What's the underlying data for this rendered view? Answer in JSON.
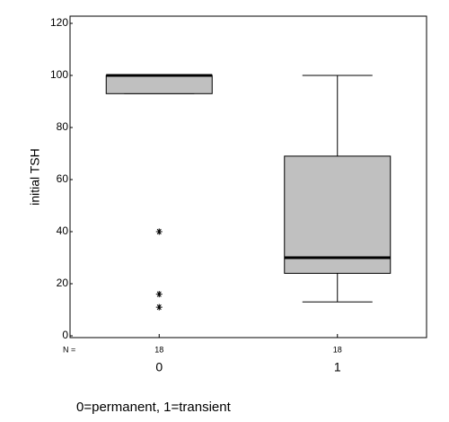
{
  "chart_data": {
    "type": "box",
    "y_label": "initial TSH",
    "categories": [
      "0",
      "1"
    ],
    "n_label": "N =",
    "n": [
      18,
      18
    ],
    "boxes": [
      {
        "whisker_low": 93,
        "q1": 93,
        "median": 100,
        "q3": 100,
        "whisker_high": 100,
        "outliers": [
          40,
          16,
          11
        ]
      },
      {
        "whisker_low": 13,
        "q1": 24,
        "median": 30,
        "q3": 69,
        "whisker_high": 100,
        "outliers": []
      }
    ],
    "color": "#c0c0c0",
    "ylim": [
      0,
      120
    ],
    "yticks": [
      0,
      20,
      40,
      60,
      80,
      100,
      120
    ],
    "note": "0=permanent, 1=transient"
  }
}
